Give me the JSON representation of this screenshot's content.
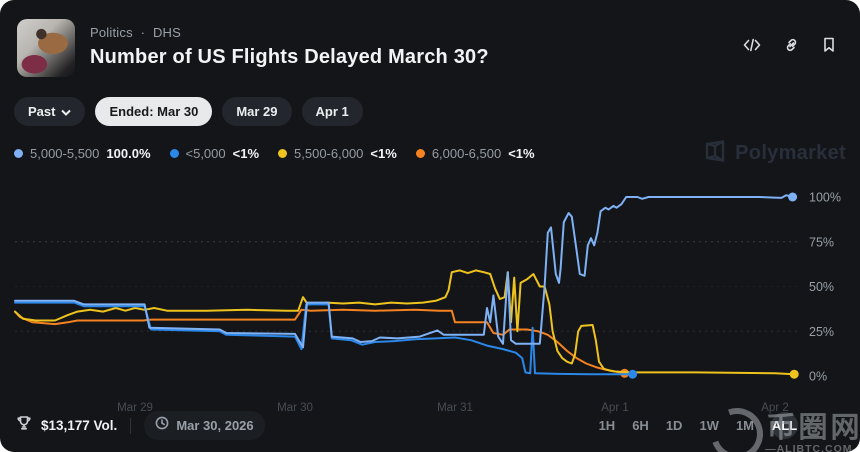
{
  "header": {
    "breadcrumb": {
      "category": "Politics",
      "separator": "·",
      "subcategory": "DHS"
    },
    "title": "Number of US Flights Delayed March 30?"
  },
  "toolbar": {
    "past_label": "Past",
    "pills": [
      {
        "label": "Ended: Mar 30",
        "active": true
      },
      {
        "label": "Mar 29",
        "active": false
      },
      {
        "label": "Apr 1",
        "active": false
      }
    ]
  },
  "legend": [
    {
      "label": "5,000-5,500",
      "value": "100.0%",
      "color": "#7fb1f5"
    },
    {
      "label": "<5,000",
      "value": "<1%",
      "color": "#2b87e8"
    },
    {
      "label": "5,500-6,000",
      "value": "<1%",
      "color": "#eec31d"
    },
    {
      "label": "6,000-6,500",
      "value": "<1%",
      "color": "#f58220"
    }
  ],
  "brand_watermark": "Polymarket",
  "chart_data": {
    "type": "line",
    "title": "Number of US Flights Delayed March 30?",
    "x_axis": {
      "tick_labels": [
        "Mar 29",
        "Mar 30",
        "Mar 31",
        "Apr 1",
        "Apr 2"
      ],
      "unit": "days"
    },
    "y_axis": {
      "tick_labels": [
        "0%",
        "25%",
        "50%",
        "75%",
        "100%"
      ],
      "ticks": [
        0,
        25,
        50,
        75,
        100
      ],
      "min": 0,
      "max": 100
    },
    "grid": "dotted horizontal gridlines at 25%, 50%, 75%",
    "legend_position": "top-left",
    "series": [
      {
        "name": "6,000-6,500",
        "color": "#f58220",
        "final_value": "<1%",
        "points": [
          [
            -0.75,
            36
          ],
          [
            -0.72,
            33
          ],
          [
            -0.64,
            30
          ],
          [
            -0.5,
            29
          ],
          [
            -0.42,
            30
          ],
          [
            -0.36,
            31
          ],
          [
            0.05,
            31
          ],
          [
            0.1,
            31.5
          ],
          [
            0.6,
            31.5
          ],
          [
            1.0,
            31.5
          ],
          [
            1.04,
            37
          ],
          [
            1.1,
            36.5
          ],
          [
            1.3,
            37
          ],
          [
            1.5,
            36.5
          ],
          [
            1.75,
            37
          ],
          [
            1.9,
            36.5
          ],
          [
            1.98,
            36.5
          ],
          [
            2.0,
            30
          ],
          [
            2.12,
            30
          ],
          [
            2.2,
            30
          ],
          [
            2.24,
            24
          ],
          [
            2.3,
            23
          ],
          [
            2.34,
            26
          ],
          [
            2.45,
            26
          ],
          [
            2.52,
            25
          ],
          [
            2.58,
            23
          ],
          [
            2.64,
            19
          ],
          [
            2.7,
            14
          ],
          [
            2.76,
            10
          ],
          [
            2.82,
            7
          ],
          [
            2.88,
            5
          ],
          [
            2.94,
            3.5
          ],
          [
            3.0,
            2.5
          ],
          [
            3.06,
            1.5
          ]
        ]
      },
      {
        "name": "5,500-6,000",
        "color": "#eec31d",
        "final_value": "<1%",
        "points": [
          [
            -0.75,
            36
          ],
          [
            -0.7,
            32
          ],
          [
            -0.62,
            31
          ],
          [
            -0.5,
            31
          ],
          [
            -0.42,
            34
          ],
          [
            -0.36,
            36
          ],
          [
            -0.28,
            37
          ],
          [
            -0.2,
            36
          ],
          [
            -0.12,
            38
          ],
          [
            -0.06,
            36.5
          ],
          [
            0.0,
            38
          ],
          [
            0.06,
            37
          ],
          [
            0.12,
            38
          ],
          [
            0.2,
            36.5
          ],
          [
            0.45,
            36.5
          ],
          [
            0.7,
            37
          ],
          [
            0.95,
            36.5
          ],
          [
            1.02,
            36.5
          ],
          [
            1.05,
            44
          ],
          [
            1.08,
            40
          ],
          [
            1.2,
            41
          ],
          [
            1.3,
            40.5
          ],
          [
            1.4,
            41
          ],
          [
            1.5,
            40
          ],
          [
            1.6,
            41
          ],
          [
            1.7,
            40.5
          ],
          [
            1.8,
            41
          ],
          [
            1.88,
            42
          ],
          [
            1.94,
            44
          ],
          [
            1.96,
            48
          ],
          [
            1.98,
            58
          ],
          [
            2.03,
            59
          ],
          [
            2.08,
            57.5
          ],
          [
            2.13,
            59
          ],
          [
            2.18,
            58
          ],
          [
            2.22,
            57
          ],
          [
            2.25,
            49
          ],
          [
            2.28,
            43
          ],
          [
            2.31,
            44
          ],
          [
            2.33,
            58
          ],
          [
            2.35,
            30
          ],
          [
            2.37,
            55
          ],
          [
            2.39,
            25
          ],
          [
            2.41,
            52
          ],
          [
            2.45,
            54
          ],
          [
            2.49,
            57
          ],
          [
            2.53,
            50
          ],
          [
            2.56,
            50
          ],
          [
            2.59,
            40
          ],
          [
            2.61,
            25
          ],
          [
            2.64,
            14
          ],
          [
            2.67,
            10
          ],
          [
            2.7,
            8
          ],
          [
            2.73,
            7
          ],
          [
            2.75,
            12
          ],
          [
            2.77,
            25
          ],
          [
            2.79,
            28
          ],
          [
            2.86,
            28.5
          ],
          [
            2.88,
            20
          ],
          [
            2.9,
            8
          ],
          [
            2.93,
            4
          ],
          [
            2.97,
            3
          ],
          [
            3.0,
            2.5
          ],
          [
            3.1,
            2
          ],
          [
            3.5,
            2
          ],
          [
            4.0,
            1.5
          ],
          [
            4.12,
            1
          ]
        ]
      },
      {
        "name": "<5,000",
        "color": "#2b87e8",
        "final_value": "<1%",
        "points": [
          [
            -0.75,
            41
          ],
          [
            -0.38,
            41
          ],
          [
            -0.32,
            39
          ],
          [
            0.06,
            39
          ],
          [
            0.1,
            26
          ],
          [
            0.53,
            25
          ],
          [
            0.57,
            23
          ],
          [
            1.0,
            22
          ],
          [
            1.04,
            15
          ],
          [
            1.07,
            40
          ],
          [
            1.21,
            40
          ],
          [
            1.23,
            21
          ],
          [
            1.35,
            20
          ],
          [
            1.42,
            17.5
          ],
          [
            1.5,
            19
          ],
          [
            1.62,
            19.5
          ],
          [
            1.75,
            20.5
          ],
          [
            1.88,
            21
          ],
          [
            2.0,
            21.5
          ],
          [
            2.1,
            20
          ],
          [
            2.2,
            17
          ],
          [
            2.3,
            15
          ],
          [
            2.38,
            13
          ],
          [
            2.42,
            10
          ],
          [
            2.44,
            2
          ],
          [
            2.47,
            1.5
          ],
          [
            2.485,
            27
          ],
          [
            2.5,
            1.5
          ],
          [
            2.65,
            1.2
          ],
          [
            2.85,
            1
          ],
          [
            3.11,
            1
          ]
        ]
      },
      {
        "name": "5,000-5,500",
        "color": "#7fb1f5",
        "final_value": "100.0%",
        "points": [
          [
            -0.75,
            42
          ],
          [
            -0.38,
            42
          ],
          [
            -0.32,
            40
          ],
          [
            0.06,
            40
          ],
          [
            0.09,
            27
          ],
          [
            0.53,
            26
          ],
          [
            0.57,
            24
          ],
          [
            1.0,
            23.5
          ],
          [
            1.05,
            16
          ],
          [
            1.075,
            41
          ],
          [
            1.21,
            41
          ],
          [
            1.23,
            22
          ],
          [
            1.36,
            21
          ],
          [
            1.41,
            19
          ],
          [
            1.48,
            19.5
          ],
          [
            1.53,
            21.5
          ],
          [
            1.64,
            21
          ],
          [
            1.78,
            22
          ],
          [
            1.89,
            25.5
          ],
          [
            1.93,
            23
          ],
          [
            2.03,
            23
          ],
          [
            2.18,
            23
          ],
          [
            2.2,
            38
          ],
          [
            2.22,
            30
          ],
          [
            2.24,
            45
          ],
          [
            2.27,
            22
          ],
          [
            2.3,
            18
          ],
          [
            2.33,
            58
          ],
          [
            2.35,
            20
          ],
          [
            2.38,
            18
          ],
          [
            2.53,
            18
          ],
          [
            2.56,
            50
          ],
          [
            2.58,
            80
          ],
          [
            2.6,
            83
          ],
          [
            2.63,
            57
          ],
          [
            2.65,
            52
          ],
          [
            2.66,
            60
          ],
          [
            2.68,
            86
          ],
          [
            2.71,
            91
          ],
          [
            2.73,
            89
          ],
          [
            2.76,
            70
          ],
          [
            2.78,
            57
          ],
          [
            2.81,
            56
          ],
          [
            2.83,
            73
          ],
          [
            2.85,
            77
          ],
          [
            2.87,
            73
          ],
          [
            2.89,
            80
          ],
          [
            2.91,
            92
          ],
          [
            2.94,
            94
          ],
          [
            2.96,
            93
          ],
          [
            2.99,
            95
          ],
          [
            3.01,
            94
          ],
          [
            3.04,
            96
          ],
          [
            3.07,
            100
          ],
          [
            3.14,
            100
          ],
          [
            3.17,
            99
          ],
          [
            3.21,
            100
          ],
          [
            3.5,
            100
          ],
          [
            3.9,
            100
          ],
          [
            4.04,
            99.5
          ],
          [
            4.07,
            101
          ],
          [
            4.11,
            100
          ]
        ]
      }
    ]
  },
  "footer": {
    "volume": "$13,177 Vol.",
    "end_date": "Mar 30, 2026",
    "ranges": [
      "1H",
      "6H",
      "1D",
      "1W",
      "1M",
      "ALL"
    ],
    "active_range": "ALL"
  },
  "site_watermark": {
    "text": "币圈网",
    "domain": "—ALIBTC.COM—"
  }
}
